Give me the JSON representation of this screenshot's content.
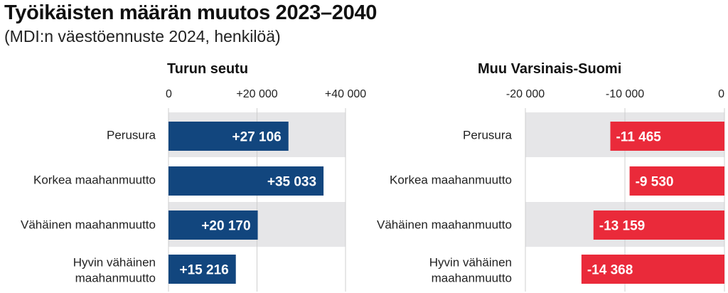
{
  "title": "Työikäisten määrän muutos 2023–2040",
  "subtitle": "(MDI:n väestöennuste 2024, henkilöä)",
  "colors": {
    "left_bar": "#12467e",
    "right_bar": "#ea2a3a",
    "band": "#e6e6e8",
    "grid": "#cfcfcf"
  },
  "chart_data": [
    {
      "type": "bar",
      "orientation": "horizontal",
      "title": "Turun seutu",
      "categories": [
        "Perusura",
        "Korkea maahanmuutto",
        "Vähäinen maahanmuutto",
        "Hyvin vähäinen maahanmuutto"
      ],
      "values": [
        27106,
        35033,
        20170,
        15216
      ],
      "value_labels": [
        "+27 106",
        "+35 033",
        "+20 170",
        "+15 216"
      ],
      "xlim": [
        0,
        40000
      ],
      "ticks": [
        0,
        20000,
        40000
      ],
      "tick_labels": [
        "0",
        "+20 000",
        "+40 000"
      ],
      "grid": true
    },
    {
      "type": "bar",
      "orientation": "horizontal",
      "title": "Muu Varsinais-Suomi",
      "categories": [
        "Perusura",
        "Korkea maahanmuutto",
        "Vähäinen maahanmuutto",
        "Hyvin vähäinen maahanmuutto"
      ],
      "values": [
        -11465,
        -9530,
        -13159,
        -14368
      ],
      "value_labels": [
        "-11 465",
        "-9 530",
        "-13 159",
        "-14 368"
      ],
      "xlim": [
        -20000,
        0
      ],
      "ticks": [
        -20000,
        -10000,
        0
      ],
      "tick_labels": [
        "-20 000",
        "-10 000",
        "0"
      ],
      "grid": true
    }
  ]
}
